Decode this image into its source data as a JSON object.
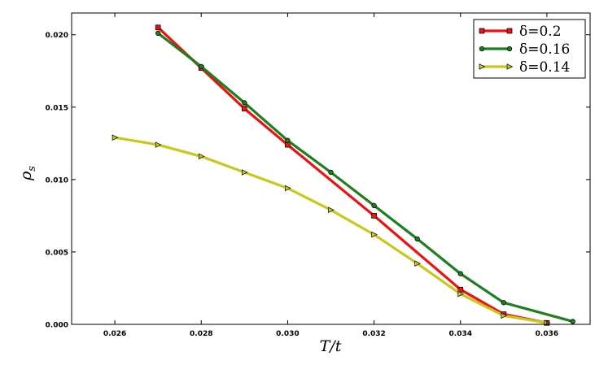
{
  "chart_data": {
    "type": "line",
    "title": "",
    "xlabel": "T/t",
    "ylabel": "ρ_s",
    "xlim": [
      0.025,
      0.037
    ],
    "ylim": [
      0.0,
      0.0215
    ],
    "x_ticks": [
      0.026,
      0.028,
      0.03,
      0.032,
      0.034,
      0.036
    ],
    "x_tick_labels": [
      "0.026",
      "0.028",
      "0.030",
      "0.032",
      "0.034",
      "0.036"
    ],
    "y_ticks": [
      0.0,
      0.005,
      0.01,
      0.015,
      0.02
    ],
    "y_tick_labels": [
      "0.000",
      "0.005",
      "0.010",
      "0.015",
      "0.020"
    ],
    "grid": false,
    "legend_position": "top-right",
    "series": [
      {
        "name": "δ=0.2",
        "color": "#ee1111",
        "marker": "square",
        "x": [
          0.027,
          0.028,
          0.029,
          0.03,
          0.032,
          0.034,
          0.035,
          0.036
        ],
        "y": [
          0.0205,
          0.0177,
          0.0149,
          0.0124,
          0.0075,
          0.0024,
          0.0007,
          0.0001
        ]
      },
      {
        "name": "δ=0.16",
        "color": "#1e7d1e",
        "marker": "circle",
        "x": [
          0.027,
          0.028,
          0.029,
          0.03,
          0.031,
          0.032,
          0.033,
          0.034,
          0.035,
          0.0366
        ],
        "y": [
          0.0201,
          0.0178,
          0.0153,
          0.0127,
          0.0105,
          0.0082,
          0.0059,
          0.0035,
          0.0015,
          0.0002
        ]
      },
      {
        "name": "δ=0.14",
        "color": "#c8c81a",
        "marker": "triangle-right",
        "x": [
          0.026,
          0.027,
          0.028,
          0.029,
          0.03,
          0.031,
          0.032,
          0.033,
          0.034,
          0.035,
          0.036
        ],
        "y": [
          0.0129,
          0.0124,
          0.0116,
          0.0105,
          0.0094,
          0.0079,
          0.0062,
          0.0042,
          0.0021,
          0.0006,
          0.0001
        ]
      }
    ]
  }
}
